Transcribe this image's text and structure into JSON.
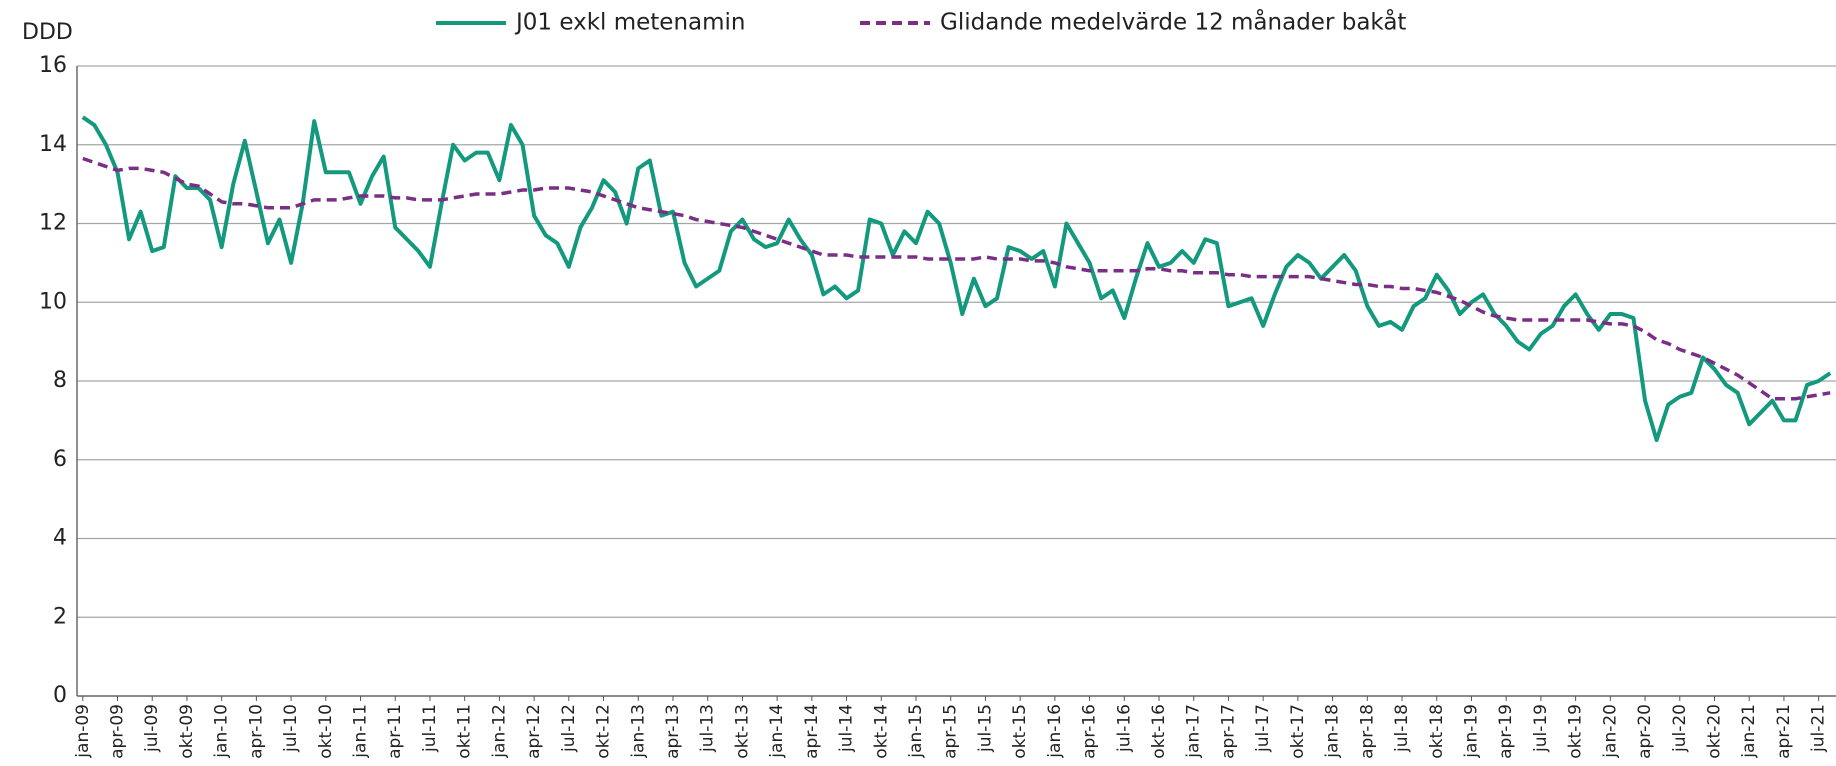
{
  "chart_data": {
    "type": "line",
    "y_label": "DDD",
    "categories": [
      "jan-09",
      null,
      null,
      "apr-09",
      null,
      null,
      "jul-09",
      null,
      null,
      "okt-09",
      null,
      null,
      "jan-10",
      null,
      null,
      "apr-10",
      null,
      null,
      "jul-10",
      null,
      null,
      "okt-10",
      null,
      null,
      "jan-11",
      null,
      null,
      "apr-11",
      null,
      null,
      "jul-11",
      null,
      null,
      "okt-11",
      null,
      null,
      "jan-12",
      null,
      null,
      "apr-12",
      null,
      null,
      "jul-12",
      null,
      null,
      "okt-12",
      null,
      null,
      "jan-13",
      null,
      null,
      "apr-13",
      null,
      null,
      "jul-13",
      null,
      null,
      "okt-13",
      null,
      null,
      "jan-14",
      null,
      null,
      "apr-14",
      null,
      null,
      "jul-14",
      null,
      null,
      "okt-14",
      null,
      null,
      "jan-15",
      null,
      null,
      "apr-15",
      null,
      null,
      "jul-15",
      null,
      null,
      "okt-15",
      null,
      null,
      "jan-16",
      null,
      null,
      "apr-16",
      null,
      null,
      "jul-16",
      null,
      null,
      "okt-16",
      null,
      null,
      "jan-17",
      null,
      null,
      "apr-17",
      null,
      null,
      "jul-17",
      null,
      null,
      "okt-17",
      null,
      null,
      "jan-18",
      null,
      null,
      "apr-18",
      null,
      null,
      "jul-18",
      null,
      null,
      "okt-18",
      null,
      null,
      "jan-19",
      null,
      null,
      "apr-19",
      null,
      null,
      "jul-19",
      null,
      null,
      "okt-19",
      null,
      null,
      "jan-20",
      null,
      null,
      "apr-20",
      null,
      null,
      "jul-20",
      null,
      null,
      "okt-20",
      null,
      null,
      "jan-21",
      null,
      null,
      "apr-21",
      null,
      null,
      "jul-21",
      null
    ],
    "series": [
      {
        "name": "J01 exkl metenamin",
        "color": "#13997d",
        "dash": false,
        "values": [
          14.7,
          14.5,
          14.0,
          13.3,
          11.6,
          12.3,
          11.3,
          11.4,
          13.2,
          12.9,
          12.9,
          12.6,
          11.4,
          13.0,
          14.1,
          12.8,
          11.5,
          12.1,
          11.0,
          12.5,
          14.6,
          13.3,
          13.3,
          13.3,
          12.5,
          13.2,
          13.7,
          11.9,
          11.6,
          11.3,
          10.9,
          12.5,
          14.0,
          13.6,
          13.8,
          13.8,
          13.1,
          14.5,
          14.0,
          12.2,
          11.7,
          11.5,
          10.9,
          11.9,
          12.4,
          13.1,
          12.8,
          12.0,
          13.4,
          13.6,
          12.2,
          12.3,
          11.0,
          10.4,
          10.6,
          10.8,
          11.8,
          12.1,
          11.6,
          11.4,
          11.5,
          12.1,
          11.6,
          11.2,
          10.2,
          10.4,
          10.1,
          10.3,
          12.1,
          12.0,
          11.2,
          11.8,
          11.5,
          12.3,
          12.0,
          11.0,
          9.7,
          10.6,
          9.9,
          10.1,
          11.4,
          11.3,
          11.1,
          11.3,
          10.4,
          12.0,
          11.5,
          11.0,
          10.1,
          10.3,
          9.6,
          10.6,
          11.5,
          10.9,
          11.0,
          11.3,
          11.0,
          11.6,
          11.5,
          9.9,
          10.0,
          10.1,
          9.4,
          10.2,
          10.9,
          11.2,
          11.0,
          10.6,
          10.9,
          11.2,
          10.8,
          9.9,
          9.4,
          9.5,
          9.3,
          9.9,
          10.1,
          10.7,
          10.3,
          9.7,
          10.0,
          10.2,
          9.7,
          9.4,
          9.0,
          8.8,
          9.2,
          9.4,
          9.9,
          10.2,
          9.7,
          9.3,
          9.7,
          9.7,
          9.6,
          7.5,
          6.5,
          7.4,
          7.6,
          7.7,
          8.6,
          8.3,
          7.9,
          7.7,
          6.9,
          7.2,
          7.5,
          7.0,
          7.0,
          7.9,
          8.0,
          8.2
        ]
      },
      {
        "name": "Glidande medelvärde 12 månader bakåt",
        "color": "#7b2e85",
        "dash": true,
        "values": [
          13.65,
          13.55,
          13.45,
          13.35,
          13.4,
          13.4,
          13.35,
          13.3,
          13.15,
          13.0,
          12.95,
          12.75,
          12.55,
          12.5,
          12.5,
          12.45,
          12.4,
          12.4,
          12.4,
          12.5,
          12.6,
          12.6,
          12.6,
          12.65,
          12.7,
          12.7,
          12.7,
          12.65,
          12.65,
          12.6,
          12.6,
          12.6,
          12.65,
          12.7,
          12.75,
          12.75,
          12.75,
          12.8,
          12.85,
          12.85,
          12.9,
          12.9,
          12.9,
          12.85,
          12.8,
          12.7,
          12.6,
          12.5,
          12.4,
          12.35,
          12.3,
          12.25,
          12.2,
          12.1,
          12.05,
          12.0,
          11.95,
          11.9,
          11.8,
          11.7,
          11.6,
          11.5,
          11.4,
          11.3,
          11.2,
          11.2,
          11.2,
          11.15,
          11.15,
          11.15,
          11.15,
          11.15,
          11.15,
          11.1,
          11.1,
          11.1,
          11.1,
          11.1,
          11.15,
          11.1,
          11.1,
          11.1,
          11.05,
          11.05,
          11.0,
          10.9,
          10.85,
          10.8,
          10.8,
          10.8,
          10.8,
          10.8,
          10.85,
          10.85,
          10.8,
          10.8,
          10.75,
          10.75,
          10.75,
          10.7,
          10.7,
          10.65,
          10.65,
          10.65,
          10.65,
          10.65,
          10.65,
          10.6,
          10.55,
          10.5,
          10.45,
          10.45,
          10.4,
          10.4,
          10.35,
          10.35,
          10.3,
          10.25,
          10.15,
          10.05,
          9.9,
          9.75,
          9.65,
          9.6,
          9.55,
          9.55,
          9.55,
          9.55,
          9.55,
          9.55,
          9.55,
          9.5,
          9.45,
          9.45,
          9.4,
          9.25,
          9.05,
          8.95,
          8.8,
          8.7,
          8.6,
          8.45,
          8.3,
          8.15,
          7.95,
          7.75,
          7.55,
          7.55,
          7.55,
          7.6,
          7.65,
          7.7
        ]
      }
    ],
    "ylim": [
      0,
      16
    ],
    "yticks": [
      0,
      2,
      4,
      6,
      8,
      10,
      12,
      14,
      16
    ],
    "grid": true,
    "legend": "top"
  }
}
